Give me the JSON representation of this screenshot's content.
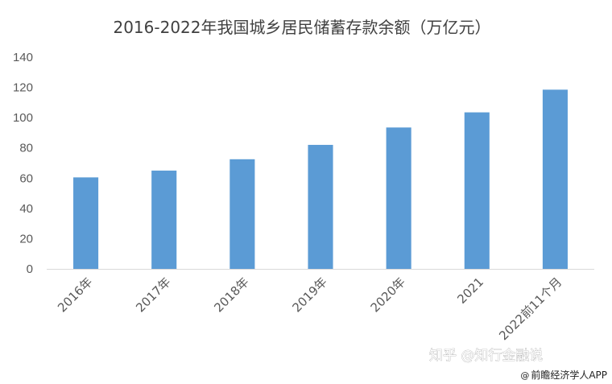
{
  "chart_data": {
    "type": "bar",
    "title": "2016-2022年我国城乡居民储蓄存款余额（万亿元）",
    "categories": [
      "2016年",
      "2017年",
      "2018年",
      "2019年",
      "2020年",
      "2021",
      "2022前11个月"
    ],
    "values": [
      60.5,
      65,
      72.5,
      82,
      93.5,
      103.5,
      118.5
    ],
    "ylim": [
      0,
      140
    ],
    "yticks": [
      0,
      20,
      40,
      60,
      80,
      100,
      120,
      140
    ],
    "grid": false,
    "bar_color": "#5b9bd5"
  },
  "watermark": {
    "text": "知乎 @知行金融说"
  },
  "credit": {
    "text": "前瞻经济学人APP",
    "icon": "at-icon",
    "icon_glyph": "@"
  }
}
